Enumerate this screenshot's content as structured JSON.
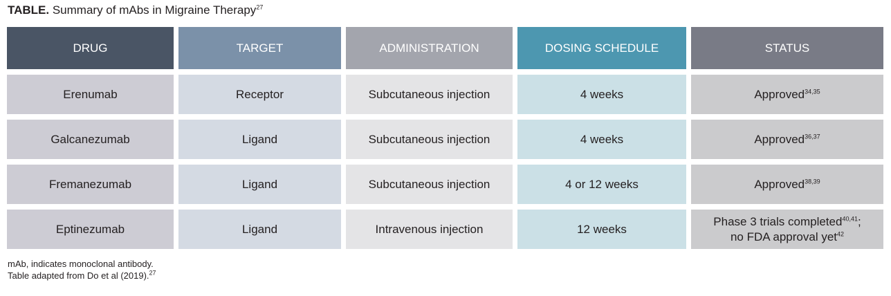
{
  "title": {
    "bold": "TABLE.",
    "text": " Summary of mAbs in Migraine Therapy",
    "ref": "27"
  },
  "headers": [
    "DRUG",
    "TARGET",
    "ADMINISTRATION",
    "DOSING SCHEDULE",
    "STATUS"
  ],
  "rows": [
    {
      "drug": "Erenumab",
      "target": "Receptor",
      "administration": "Subcutaneous injection",
      "dosing": "4 weeks",
      "status": "Approved",
      "status_ref": "34,35"
    },
    {
      "drug": "Galcanezumab",
      "target": "Ligand",
      "administration": "Subcutaneous injection",
      "dosing": "4 weeks",
      "status": "Approved",
      "status_ref": "36,37"
    },
    {
      "drug": "Fremanezumab",
      "target": "Ligand",
      "administration": "Subcutaneous injection",
      "dosing": "4 or 12 weeks",
      "status": "Approved",
      "status_ref": "38,39"
    },
    {
      "drug": "Eptinezumab",
      "target": "Ligand",
      "administration": "Intravenous injection",
      "dosing": "12 weeks",
      "status": "Phase 3 trials completed",
      "status_ref": "40,41",
      "status_line2": "no FDA approval yet",
      "status_ref2": "42"
    }
  ],
  "footnotes": {
    "line1": "mAb, indicates monoclonal antibody.",
    "line2": "Table adapted from Do et al (2019).",
    "line2_ref": "27"
  }
}
